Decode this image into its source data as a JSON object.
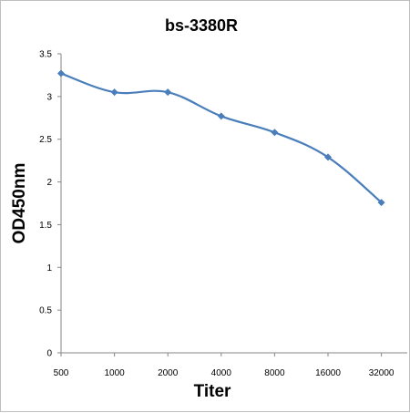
{
  "chart_data": {
    "type": "line",
    "title": "bs-3380R",
    "xlabel": "Titer",
    "ylabel": "OD450nm",
    "categories": [
      "500",
      "1000",
      "2000",
      "4000",
      "8000",
      "16000",
      "32000"
    ],
    "series": [
      {
        "values": [
          3.27,
          3.05,
          3.05,
          2.77,
          2.58,
          2.29,
          1.76
        ]
      }
    ],
    "ylim": [
      0,
      3.5
    ],
    "yticks": [
      "0",
      "0.5",
      "1",
      "1.5",
      "2",
      "2.5",
      "3",
      "3.5"
    ],
    "grid": false,
    "legend": "none",
    "line_color": "#4a7ebb"
  }
}
